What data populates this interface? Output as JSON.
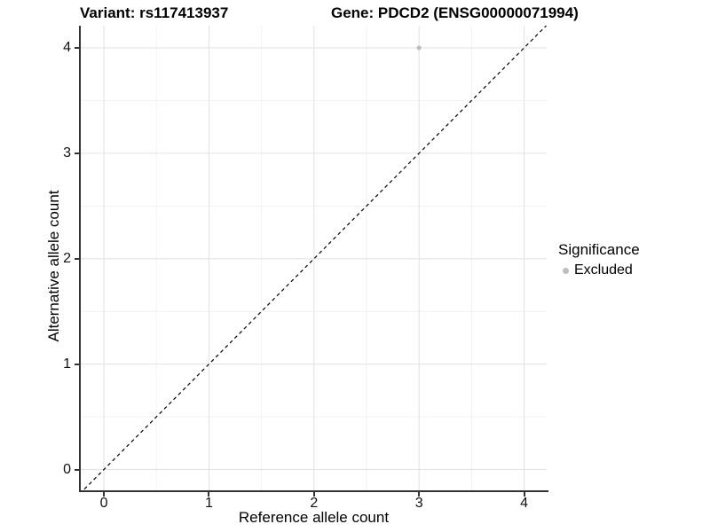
{
  "title": {
    "left": "Variant: rs117413937",
    "right": "Gene: PDCD2 (ENSG00000071994)"
  },
  "chart_data": {
    "type": "scatter",
    "xlabel": "Reference allele count",
    "ylabel": "Alternative allele count",
    "xlim": [
      -0.22,
      4.215
    ],
    "ylim": [
      -0.197,
      4.21
    ],
    "xticks": [
      0,
      1,
      2,
      3,
      4
    ],
    "yticks": [
      0,
      1,
      2,
      3,
      4
    ],
    "minor_xticks": [
      0.5,
      1.5,
      2.5,
      3.5
    ],
    "minor_yticks": [
      0.5,
      1.5,
      2.5,
      3.5
    ],
    "grid": {
      "major": true,
      "minor": true
    },
    "points": [
      {
        "x": 3,
        "y": 4,
        "series": "Excluded"
      }
    ],
    "identity_line": {
      "style": "dashed",
      "slope": 1,
      "intercept": 0
    },
    "legend": {
      "title": "Significance",
      "position": "right",
      "entries": [
        {
          "label": "Excluded",
          "color": "#bdbdbd"
        }
      ]
    }
  },
  "colors": {
    "grid_major": "#e3e3e3",
    "grid_minor": "#f1f1f1",
    "axis": "#333333",
    "point": "#bdbdbd",
    "identity_line": "#000000",
    "background": "#ffffff"
  }
}
